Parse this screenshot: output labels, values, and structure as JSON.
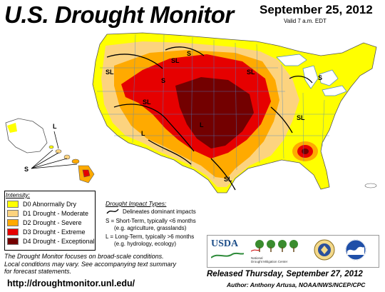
{
  "header": {
    "title": "U.S. Drought Monitor",
    "date": "September 25, 2012",
    "valid": "Valid 7 a.m. EDT"
  },
  "colors": {
    "d0": "#FFFF00",
    "d1": "#FCD37F",
    "d2": "#FFAA00",
    "d3": "#E60000",
    "d4": "#730000",
    "none": "#FFFFFF",
    "water": "#FFFFFF"
  },
  "legend": {
    "heading": "Intensity:",
    "items": [
      {
        "code": "D0",
        "label": "D0 Abnormally Dry",
        "color": "#FFFF00"
      },
      {
        "code": "D1",
        "label": "D1 Drought - Moderate",
        "color": "#FCD37F"
      },
      {
        "code": "D2",
        "label": "D2 Drought - Severe",
        "color": "#FFAA00"
      },
      {
        "code": "D3",
        "label": "D3 Drought - Extreme",
        "color": "#E60000"
      },
      {
        "code": "D4",
        "label": "D4 Drought - Exceptional",
        "color": "#730000"
      }
    ]
  },
  "impact": {
    "heading": "Drought Impact Types:",
    "line_label": "Delineates dominant impacts",
    "short_term_1": "S = Short-Term, typically <6 months",
    "short_term_2": "(e.g. agriculture, grasslands)",
    "long_term_1": "L = Long-Term, typically >6 months",
    "long_term_2": "(e.g. hydrology, ecology)"
  },
  "map_labels": {
    "sl": "SL",
    "s": "S",
    "l": "L"
  },
  "note": {
    "line1": "The Drought Monitor focuses on broad-scale conditions.",
    "line2": "Local conditions may vary. See accompanying text summary",
    "line3": "for forecast statements."
  },
  "footer": {
    "url": "http://droughtmonitor.unl.edu/",
    "released": "Released Thursday, September 27, 2012",
    "author": "Author: Anthony Artusa, NOAA/NWS/NCEP/CPC"
  },
  "logos": {
    "usda": "USDA",
    "ndmc_line1": "National",
    "ndmc_line2": "Drought Mitigation Center"
  }
}
